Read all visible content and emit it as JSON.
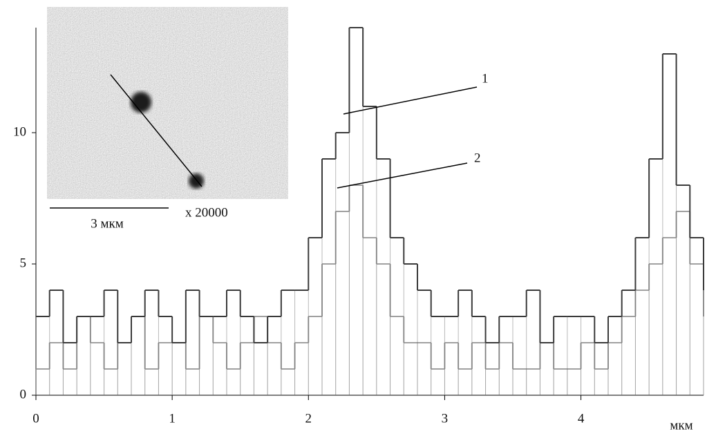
{
  "chart_data": {
    "type": "step",
    "x_label": "мкм",
    "x": [
      0,
      0.1,
      0.2,
      0.3,
      0.4,
      0.5,
      0.6,
      0.7,
      0.8,
      0.9,
      1,
      1.1,
      1.2,
      1.3,
      1.4,
      1.5,
      1.6,
      1.7,
      1.8,
      1.9,
      2,
      2.1,
      2.2,
      2.3,
      2.4,
      2.5,
      2.6,
      2.7,
      2.8,
      2.9,
      3,
      3.1,
      3.2,
      3.3,
      3.4,
      3.5,
      3.6,
      3.7,
      3.8,
      3.9,
      4,
      4.1,
      4.2,
      4.3,
      4.4,
      4.5,
      4.6,
      4.7,
      4.8,
      4.9
    ],
    "series": [
      {
        "name": "1",
        "color": "#3a3a3a",
        "values": [
          3,
          4,
          2,
          3,
          3,
          4,
          2,
          3,
          4,
          3,
          2,
          4,
          3,
          3,
          4,
          3,
          2,
          3,
          4,
          4,
          6,
          9,
          10,
          14,
          11,
          9,
          6,
          5,
          4,
          3,
          3,
          4,
          3,
          2,
          3,
          3,
          4,
          2,
          3,
          3,
          3,
          2,
          3,
          4,
          6,
          9,
          13,
          8,
          6,
          4
        ]
      },
      {
        "name": "2",
        "color": "#a0a0a0",
        "values": [
          1,
          2,
          1,
          3,
          2,
          1,
          2,
          3,
          1,
          2,
          2,
          1,
          3,
          2,
          1,
          2,
          3,
          2,
          1,
          2,
          3,
          5,
          7,
          8,
          6,
          5,
          3,
          2,
          2,
          1,
          2,
          1,
          2,
          1,
          2,
          1,
          1,
          2,
          1,
          1,
          2,
          1,
          2,
          3,
          4,
          5,
          6,
          7,
          5,
          3
        ]
      }
    ],
    "xlim": [
      0,
      4.9
    ],
    "xticks": [
      0,
      1,
      2,
      3,
      4
    ],
    "ylim": [
      0,
      14
    ],
    "yticks": [
      0,
      5,
      10
    ],
    "inset": {
      "scale_label": "3 мкм",
      "magnification": "x 20000"
    }
  }
}
